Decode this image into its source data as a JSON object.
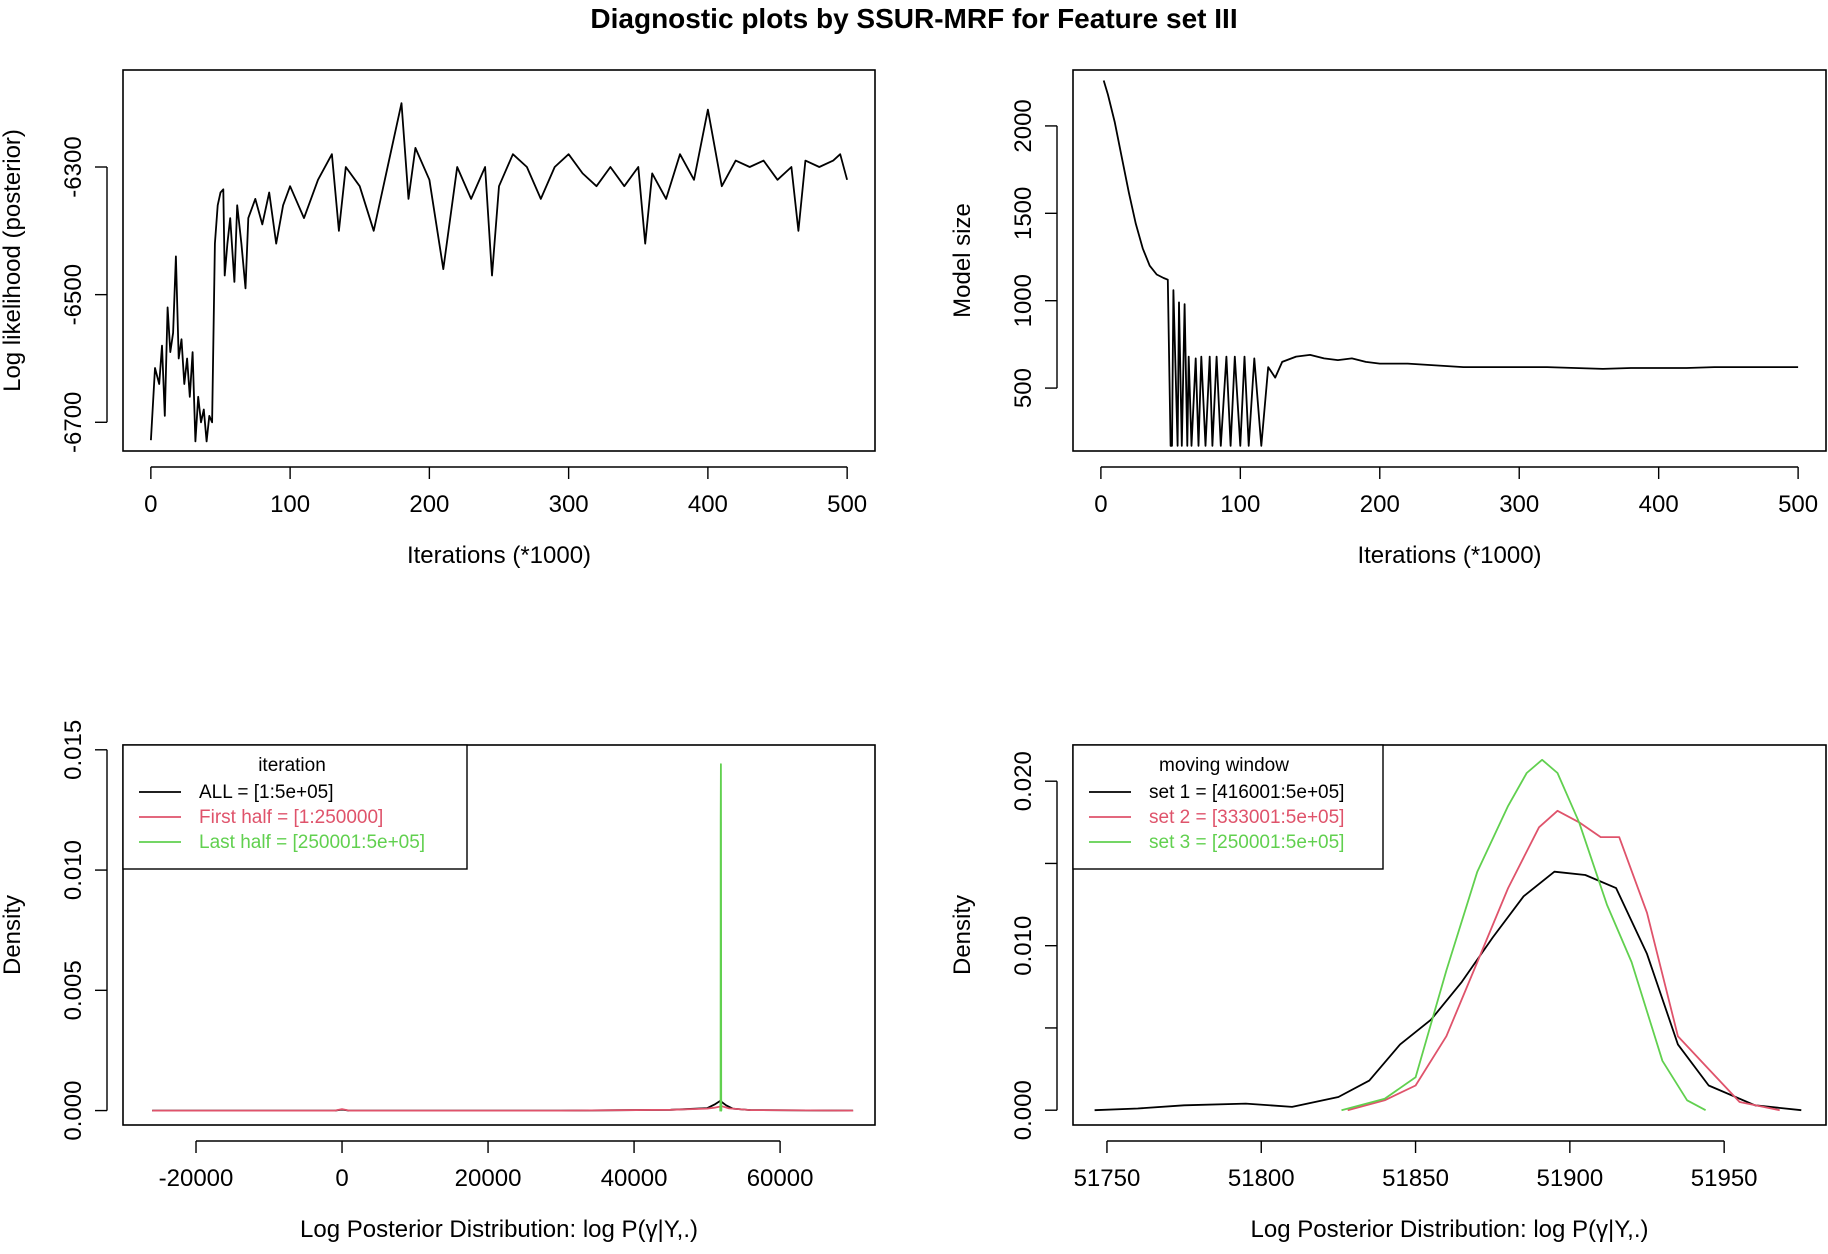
{
  "figure_title": "Diagnostic plots by SSUR-MRF for Feature set III",
  "colors": {
    "black": "#000000",
    "red": "#DF536B",
    "green": "#61D04F"
  },
  "chart_data": [
    {
      "id": "p1",
      "type": "line",
      "title": "",
      "xlabel": "Iterations (*1000)",
      "ylabel": "Log likelihood (posterior)",
      "xlim": [
        -20,
        520
      ],
      "ylim": [
        -6745,
        -6148
      ],
      "xticks": [
        0,
        100,
        200,
        300,
        400,
        500
      ],
      "xtick_labels": [
        "0",
        "100",
        "200",
        "300",
        "400",
        "500"
      ],
      "yticks": [
        -6700,
        -6500,
        -6300
      ],
      "ytick_labels": [
        "-6700",
        "-6500",
        "-6300"
      ],
      "series": [
        {
          "name": "log-likelihood trace",
          "color": "#000000",
          "x": [
            0,
            3,
            6,
            8,
            10,
            12,
            14,
            16,
            18,
            20,
            22,
            24,
            26,
            28,
            30,
            32,
            34,
            36,
            38,
            40,
            42,
            44,
            46,
            48,
            50,
            52,
            53,
            55,
            57,
            60,
            62,
            65,
            68,
            70,
            75,
            80,
            85,
            90,
            95,
            100,
            110,
            120,
            130,
            135,
            140,
            150,
            160,
            170,
            180,
            185,
            190,
            200,
            210,
            220,
            230,
            240,
            245,
            250,
            260,
            270,
            280,
            290,
            300,
            310,
            320,
            330,
            340,
            350,
            355,
            360,
            370,
            380,
            390,
            400,
            410,
            420,
            430,
            440,
            450,
            460,
            465,
            470,
            480,
            490,
            495,
            500
          ],
          "values": [
            -6728,
            -6615,
            -6640,
            -6580,
            -6690,
            -6520,
            -6590,
            -6560,
            -6440,
            -6600,
            -6570,
            -6640,
            -6600,
            -6660,
            -6590,
            -6730,
            -6660,
            -6700,
            -6680,
            -6730,
            -6690,
            -6700,
            -6420,
            -6360,
            -6340,
            -6335,
            -6470,
            -6420,
            -6380,
            -6480,
            -6360,
            -6420,
            -6490,
            -6380,
            -6350,
            -6390,
            -6340,
            -6420,
            -6360,
            -6330,
            -6380,
            -6320,
            -6280,
            -6400,
            -6300,
            -6330,
            -6400,
            -6300,
            -6200,
            -6350,
            -6270,
            -6320,
            -6460,
            -6300,
            -6350,
            -6300,
            -6470,
            -6330,
            -6280,
            -6300,
            -6350,
            -6300,
            -6280,
            -6310,
            -6330,
            -6300,
            -6330,
            -6300,
            -6420,
            -6310,
            -6350,
            -6280,
            -6320,
            -6210,
            -6330,
            -6290,
            -6300,
            -6290,
            -6320,
            -6300,
            -6400,
            -6290,
            -6300,
            -6290,
            -6280,
            -6320
          ]
        }
      ]
    },
    {
      "id": "p2",
      "type": "line",
      "title": "",
      "xlabel": "Iterations (*1000)",
      "ylabel": "Model size",
      "xlim": [
        -20,
        520
      ],
      "ylim": [
        140,
        2320
      ],
      "xticks": [
        0,
        100,
        200,
        300,
        400,
        500
      ],
      "xtick_labels": [
        "0",
        "100",
        "200",
        "300",
        "400",
        "500"
      ],
      "yticks": [
        500,
        1000,
        1500,
        2000
      ],
      "ytick_labels": [
        "500",
        "1000",
        "1500",
        "2000"
      ],
      "series": [
        {
          "name": "model size trace",
          "color": "#000000",
          "x": [
            2,
            5,
            10,
            15,
            20,
            25,
            30,
            35,
            40,
            45,
            48,
            50,
            51,
            52,
            55,
            56,
            58,
            60,
            62,
            63,
            65,
            68,
            70,
            72,
            75,
            78,
            80,
            83,
            86,
            90,
            93,
            96,
            100,
            103,
            106,
            110,
            115,
            120,
            125,
            130,
            140,
            150,
            160,
            170,
            180,
            190,
            200,
            220,
            240,
            260,
            280,
            300,
            320,
            340,
            360,
            380,
            400,
            420,
            440,
            460,
            480,
            500
          ],
          "values": [
            2260,
            2180,
            2020,
            1820,
            1620,
            1440,
            1300,
            1200,
            1150,
            1130,
            1120,
            170,
            170,
            1060,
            170,
            990,
            170,
            980,
            170,
            680,
            170,
            670,
            170,
            680,
            170,
            680,
            170,
            680,
            170,
            680,
            170,
            680,
            170,
            680,
            170,
            670,
            170,
            620,
            560,
            650,
            680,
            690,
            670,
            660,
            670,
            650,
            640,
            640,
            630,
            620,
            620,
            620,
            620,
            615,
            610,
            615,
            615,
            615,
            620,
            620,
            620,
            620
          ]
        }
      ]
    },
    {
      "id": "p3",
      "type": "line",
      "title": "",
      "xlabel": "Log Posterior Distribution: log P(γ|Y,.)",
      "ylabel": "Density",
      "xlim": [
        -30000,
        73000
      ],
      "ylim": [
        -0.0006,
        0.0152
      ],
      "xticks": [
        -20000,
        0,
        20000,
        40000,
        60000
      ],
      "xtick_labels": [
        "-20000",
        "0",
        "20000",
        "40000",
        "60000"
      ],
      "yticks": [
        0.0,
        0.005,
        0.01,
        0.015
      ],
      "ytick_labels": [
        "0.000",
        "0.005",
        "0.010",
        "0.015"
      ],
      "legend": {
        "title": "iteration",
        "position": "top-left",
        "entries": [
          "ALL = [1:5e+05]",
          "First half = [1:250000]",
          "Last half = [250001:5e+05]"
        ]
      },
      "series": [
        {
          "name": "ALL = [1:5e+05]",
          "color": "#000000",
          "x": [
            -26000,
            -10000,
            -1000,
            0,
            1000,
            10000,
            30000,
            45000,
            50000,
            51000,
            51800,
            52600,
            53500,
            56000,
            70000
          ],
          "values": [
            0,
            0,
            0,
            4e-05,
            0,
            0,
            0,
            3e-05,
            0.0001,
            0.00025,
            0.0004,
            0.00022,
            8e-05,
            2e-05,
            0
          ]
        },
        {
          "name": "First half = [1:250000]",
          "color": "#DF536B",
          "x": [
            -26000,
            -10000,
            -1000,
            0,
            1000,
            10000,
            30000,
            45000,
            50000,
            51000,
            52000,
            53000,
            56000,
            70000
          ],
          "values": [
            0,
            0,
            0,
            6e-05,
            0,
            0,
            0,
            3e-05,
            8e-05,
            0.00012,
            0.00018,
            9e-05,
            2e-05,
            0
          ]
        },
        {
          "name": "Last half = [250001:5e+05]",
          "color": "#61D04F",
          "x": [
            51700,
            51800,
            51850,
            51870,
            51890,
            51910,
            51930,
            51960,
            52050
          ],
          "values": [
            0,
            0,
            0.0005,
            0.012,
            0.0144,
            0.012,
            0.0005,
            0,
            0
          ]
        }
      ]
    },
    {
      "id": "p4",
      "type": "line",
      "title": "",
      "xlabel": "Log Posterior Distribution: log P(γ|Y,.)",
      "ylabel": "Density",
      "xlim": [
        51739,
        51983
      ],
      "ylim": [
        -0.0009,
        0.0222
      ],
      "xticks": [
        51750,
        51800,
        51850,
        51900,
        51950
      ],
      "xtick_labels": [
        "51750",
        "51800",
        "51850",
        "51900",
        "51950"
      ],
      "yticks": [
        0.0,
        0.005,
        0.01,
        0.015,
        0.02
      ],
      "ytick_labels": [
        "0.000",
        "",
        "0.010",
        "",
        "0.020"
      ],
      "legend": {
        "title": "moving window",
        "position": "top-left",
        "entries": [
          "set 1 = [416001:5e+05]",
          "set 2 = [333001:5e+05]",
          "set 3 = [250001:5e+05]"
        ]
      },
      "series": [
        {
          "name": "set 1 = [416001:5e+05]",
          "color": "#000000",
          "x": [
            51746,
            51760,
            51775,
            51795,
            51810,
            51825,
            51835,
            51845,
            51855,
            51865,
            51875,
            51885,
            51895,
            51905,
            51915,
            51925,
            51935,
            51945,
            51960,
            51975
          ],
          "values": [
            0.0,
            0.0001,
            0.0003,
            0.0004,
            0.0002,
            0.0008,
            0.0018,
            0.004,
            0.0055,
            0.0078,
            0.0105,
            0.013,
            0.0145,
            0.0143,
            0.0135,
            0.0095,
            0.004,
            0.0015,
            0.0003,
            0.0
          ]
        },
        {
          "name": "set 2 = [333001:5e+05]",
          "color": "#DF536B",
          "x": [
            51828,
            51840,
            51850,
            51860,
            51870,
            51880,
            51890,
            51896,
            51903,
            51910,
            51916,
            51925,
            51935,
            51945,
            51955,
            51968
          ],
          "values": [
            0.0,
            0.0006,
            0.0015,
            0.0045,
            0.009,
            0.0135,
            0.0172,
            0.0182,
            0.0175,
            0.0166,
            0.0166,
            0.012,
            0.0045,
            0.0025,
            0.0005,
            0.0
          ]
        },
        {
          "name": "set 3 = [250001:5e+05]",
          "color": "#61D04F",
          "x": [
            51826,
            51840,
            51850,
            51860,
            51870,
            51880,
            51886,
            51891,
            51896,
            51903,
            51912,
            51920,
            51930,
            51938,
            51944
          ],
          "values": [
            0.0,
            0.0007,
            0.002,
            0.0085,
            0.0145,
            0.0185,
            0.0205,
            0.0213,
            0.0205,
            0.0175,
            0.0125,
            0.009,
            0.003,
            0.0006,
            0.0
          ]
        }
      ]
    }
  ]
}
